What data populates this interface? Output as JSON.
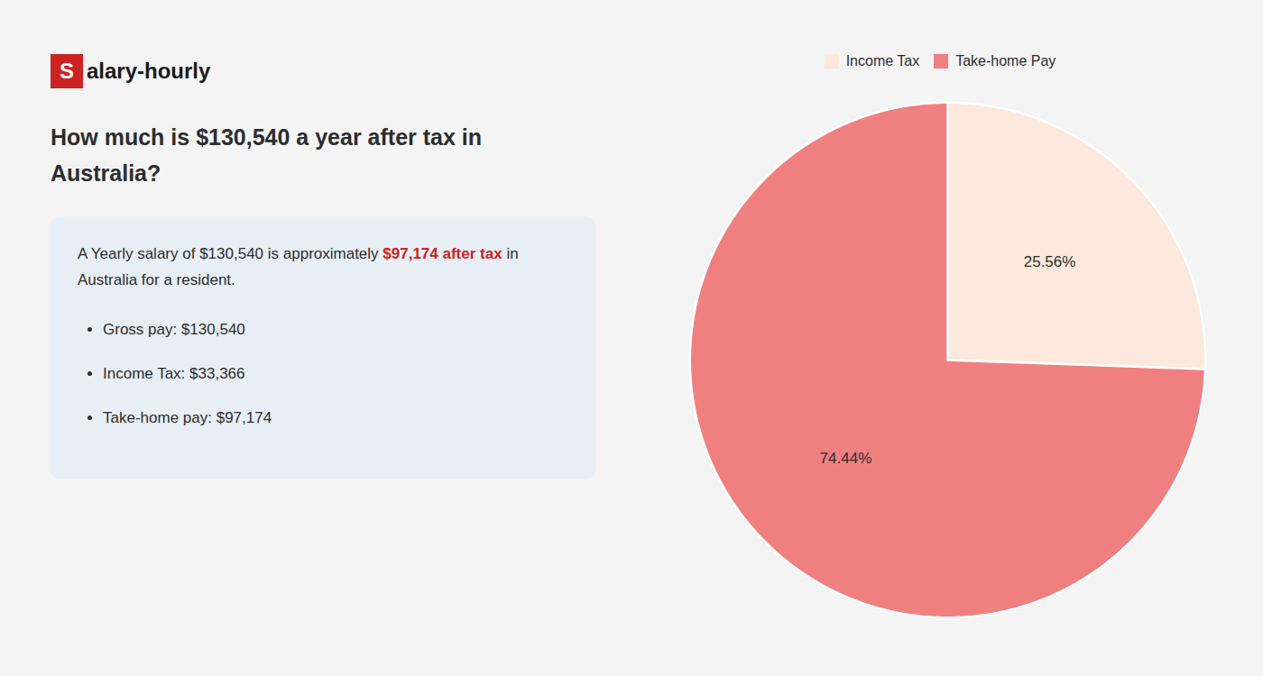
{
  "chart_data": {
    "type": "pie",
    "title": "How much is $130,540 a year after tax in Australia?",
    "annotations": {
      "logo": {
        "text": "Salary-hourly",
        "color": "#cc2222"
      },
      "summary": [
        {
          "text": "A Yearly salary of $130,540 is approximately "
        },
        {
          "text": "$97,174 after tax",
          "color": "#cc2222"
        },
        {
          "text": " in Australia for a resident."
        }
      ],
      "bullets": [
        "Gross pay: $130,540",
        "Income Tax: $33,366",
        "Take-home pay: $97,174"
      ]
    },
    "categories": [
      "Income Tax",
      "Take-home Pay"
    ],
    "values": [
      25.56,
      74.44
    ],
    "value_labels": [
      "25.56%",
      "74.44%"
    ],
    "colors": [
      "#fce8dc",
      "#f08080"
    ],
    "data_labels": true,
    "legend": "top"
  }
}
